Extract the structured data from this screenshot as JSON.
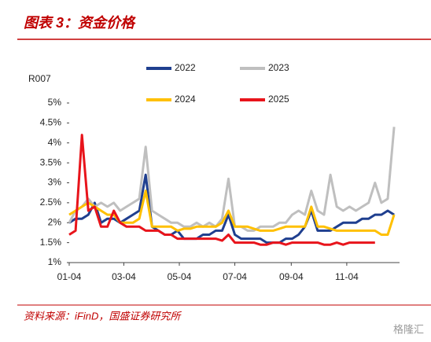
{
  "chart_data": {
    "type": "line",
    "title": "图表 3：资金价格",
    "y_label": "R007",
    "source": "资料来源：iFinD，国盛证券研究所",
    "watermark": "格隆汇",
    "x": [
      3,
      10,
      17,
      24,
      31,
      38,
      45,
      52,
      59,
      66,
      73,
      80,
      87,
      94,
      101,
      108,
      115,
      122,
      129,
      136,
      143,
      150,
      157,
      164,
      171,
      178,
      185,
      192,
      199,
      206,
      213,
      220,
      227,
      234,
      241,
      248,
      255,
      262,
      269,
      276,
      283,
      290,
      297,
      304,
      311,
      318,
      325,
      332,
      339,
      346,
      353,
      360
    ],
    "xlim": [
      3,
      366
    ],
    "xticks": [
      {
        "value": 3,
        "label": "01-04"
      },
      {
        "value": 63,
        "label": "03-04"
      },
      {
        "value": 124,
        "label": "05-04"
      },
      {
        "value": 185,
        "label": "07-04"
      },
      {
        "value": 247,
        "label": "09-04"
      },
      {
        "value": 308,
        "label": "11-04"
      }
    ],
    "ylim": [
      1,
      5
    ],
    "yticks": [
      {
        "value": 1,
        "label": "1%"
      },
      {
        "value": 1.5,
        "label": "1.5%"
      },
      {
        "value": 2,
        "label": "2%"
      },
      {
        "value": 2.5,
        "label": "2.5%"
      },
      {
        "value": 3,
        "label": "3%"
      },
      {
        "value": 3.5,
        "label": "3.5%"
      },
      {
        "value": 4,
        "label": "4%"
      },
      {
        "value": 4.5,
        "label": "4.5%"
      },
      {
        "value": 5,
        "label": "5%"
      }
    ],
    "series": [
      {
        "name": "2022",
        "color": "#1f3f8f",
        "values": [
          2.0,
          2.1,
          2.1,
          2.2,
          2.5,
          2.0,
          2.1,
          2.1,
          2.0,
          2.1,
          2.2,
          2.3,
          3.2,
          1.9,
          1.8,
          1.7,
          1.7,
          1.8,
          1.6,
          1.6,
          1.6,
          1.7,
          1.7,
          1.8,
          1.8,
          2.2,
          1.7,
          1.6,
          1.6,
          1.6,
          1.6,
          1.5,
          1.5,
          1.5,
          1.6,
          1.6,
          1.7,
          1.9,
          2.3,
          1.8,
          1.8,
          1.8,
          1.9,
          2.0,
          2.0,
          2.0,
          2.1,
          2.1,
          2.2,
          2.2,
          2.3,
          2.2
        ]
      },
      {
        "name": "2023",
        "color": "#bfbfbf",
        "values": [
          2.0,
          2.3,
          2.4,
          2.6,
          2.4,
          2.5,
          2.4,
          2.5,
          2.3,
          2.4,
          2.5,
          2.6,
          3.9,
          2.3,
          2.2,
          2.1,
          2.0,
          2.0,
          1.9,
          1.9,
          2.0,
          1.9,
          2.0,
          1.9,
          2.1,
          3.1,
          1.9,
          1.9,
          1.8,
          1.8,
          1.9,
          1.9,
          1.9,
          2.0,
          2.0,
          2.2,
          2.3,
          2.2,
          2.8,
          2.3,
          2.2,
          3.2,
          2.4,
          2.3,
          2.4,
          2.3,
          2.4,
          2.5,
          3.0,
          2.5,
          2.6,
          4.4
        ]
      },
      {
        "name": "2024",
        "color": "#ffc000",
        "values": [
          2.2,
          2.3,
          2.4,
          2.5,
          2.4,
          2.3,
          2.2,
          2.2,
          2.0,
          2.0,
          2.0,
          2.1,
          2.8,
          1.9,
          1.9,
          1.9,
          1.9,
          1.8,
          1.85,
          1.85,
          1.9,
          1.9,
          1.9,
          1.9,
          2.0,
          2.3,
          1.9,
          1.9,
          1.9,
          1.85,
          1.8,
          1.8,
          1.8,
          1.85,
          1.9,
          1.9,
          1.9,
          1.9,
          2.4,
          1.9,
          1.9,
          1.85,
          1.8,
          1.8,
          1.8,
          1.8,
          1.8,
          1.8,
          1.8,
          1.7,
          1.7,
          2.2
        ]
      },
      {
        "name": "2025",
        "color": "#e8141b",
        "values": [
          1.7,
          1.8,
          4.2,
          2.3,
          2.4,
          1.9,
          1.9,
          2.3,
          2.0,
          1.9,
          1.9,
          1.9,
          1.8,
          1.8,
          1.8,
          1.7,
          1.7,
          1.6,
          1.6,
          1.6,
          1.6,
          1.6,
          1.6,
          1.6,
          1.55,
          1.7,
          1.5,
          1.5,
          1.5,
          1.5,
          1.45,
          1.45,
          1.5,
          1.5,
          1.45,
          1.5,
          1.5,
          1.5,
          1.5,
          1.5,
          1.45,
          1.45,
          1.5,
          1.45,
          1.5,
          1.5,
          1.5,
          1.5,
          1.5,
          null,
          null,
          null
        ]
      }
    ]
  }
}
